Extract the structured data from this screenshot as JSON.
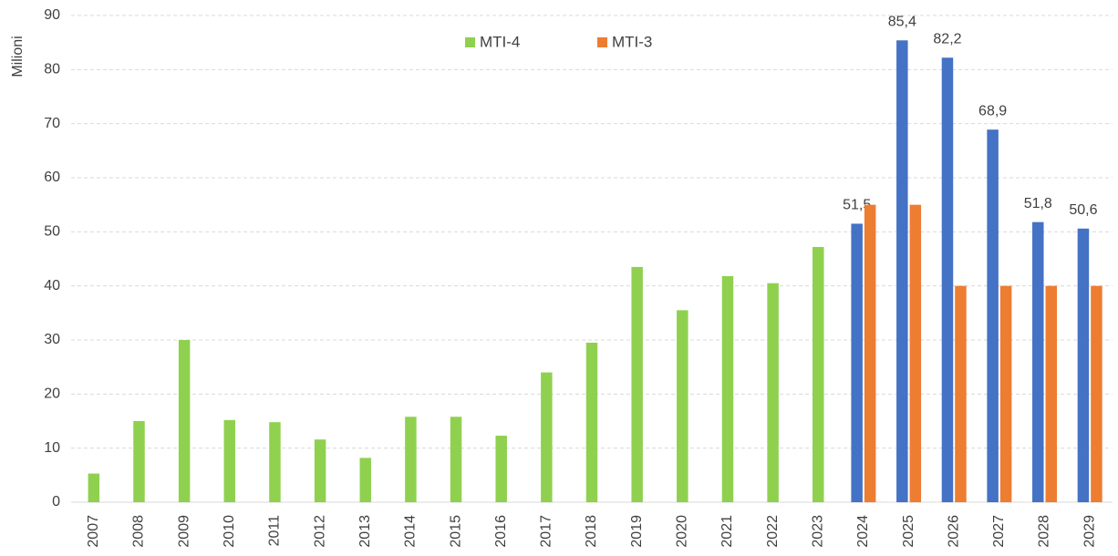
{
  "chart_data": {
    "type": "bar",
    "ylabel": "Milioni",
    "categories": [
      "2007",
      "2008",
      "2009",
      "2010",
      "2011",
      "2012",
      "2013",
      "2014",
      "2015",
      "2016",
      "2017",
      "2018",
      "2019",
      "2020",
      "2021",
      "2022",
      "2023",
      "2024",
      "2025",
      "2026",
      "2027",
      "2028",
      "2029"
    ],
    "series": [
      {
        "name": "MTI-4",
        "color": "#8fd14f",
        "colors": [
          "#8fd14f",
          "#8fd14f",
          "#8fd14f",
          "#8fd14f",
          "#8fd14f",
          "#8fd14f",
          "#8fd14f",
          "#8fd14f",
          "#8fd14f",
          "#8fd14f",
          "#8fd14f",
          "#8fd14f",
          "#8fd14f",
          "#8fd14f",
          "#8fd14f",
          "#8fd14f",
          "#8fd14f",
          "#4472c4",
          "#4472c4",
          "#4472c4",
          "#4472c4",
          "#4472c4",
          "#4472c4"
        ],
        "values": [
          5.3,
          15,
          30,
          15.2,
          14.8,
          11.6,
          8.2,
          15.8,
          15.8,
          12.3,
          24,
          29.5,
          43.5,
          35.5,
          41.8,
          40.5,
          47.2,
          51.5,
          85.4,
          82.2,
          68.9,
          51.8,
          50.6
        ],
        "value_labels": [
          null,
          null,
          null,
          null,
          null,
          null,
          null,
          null,
          null,
          null,
          null,
          null,
          null,
          null,
          null,
          null,
          null,
          "51,5",
          "85,4",
          "82,2",
          "68,9",
          "51,8",
          "50,6"
        ]
      },
      {
        "name": "MTI-3",
        "color": "#ed7d31",
        "values": [
          null,
          null,
          null,
          null,
          null,
          null,
          null,
          null,
          null,
          null,
          null,
          null,
          null,
          null,
          null,
          null,
          null,
          55,
          55,
          40,
          40,
          40,
          40
        ]
      }
    ],
    "ylim": [
      0,
      90
    ],
    "yticks": [
      0,
      10,
      20,
      30,
      40,
      50,
      60,
      70,
      80,
      90
    ],
    "grid": true,
    "legend": "top"
  }
}
